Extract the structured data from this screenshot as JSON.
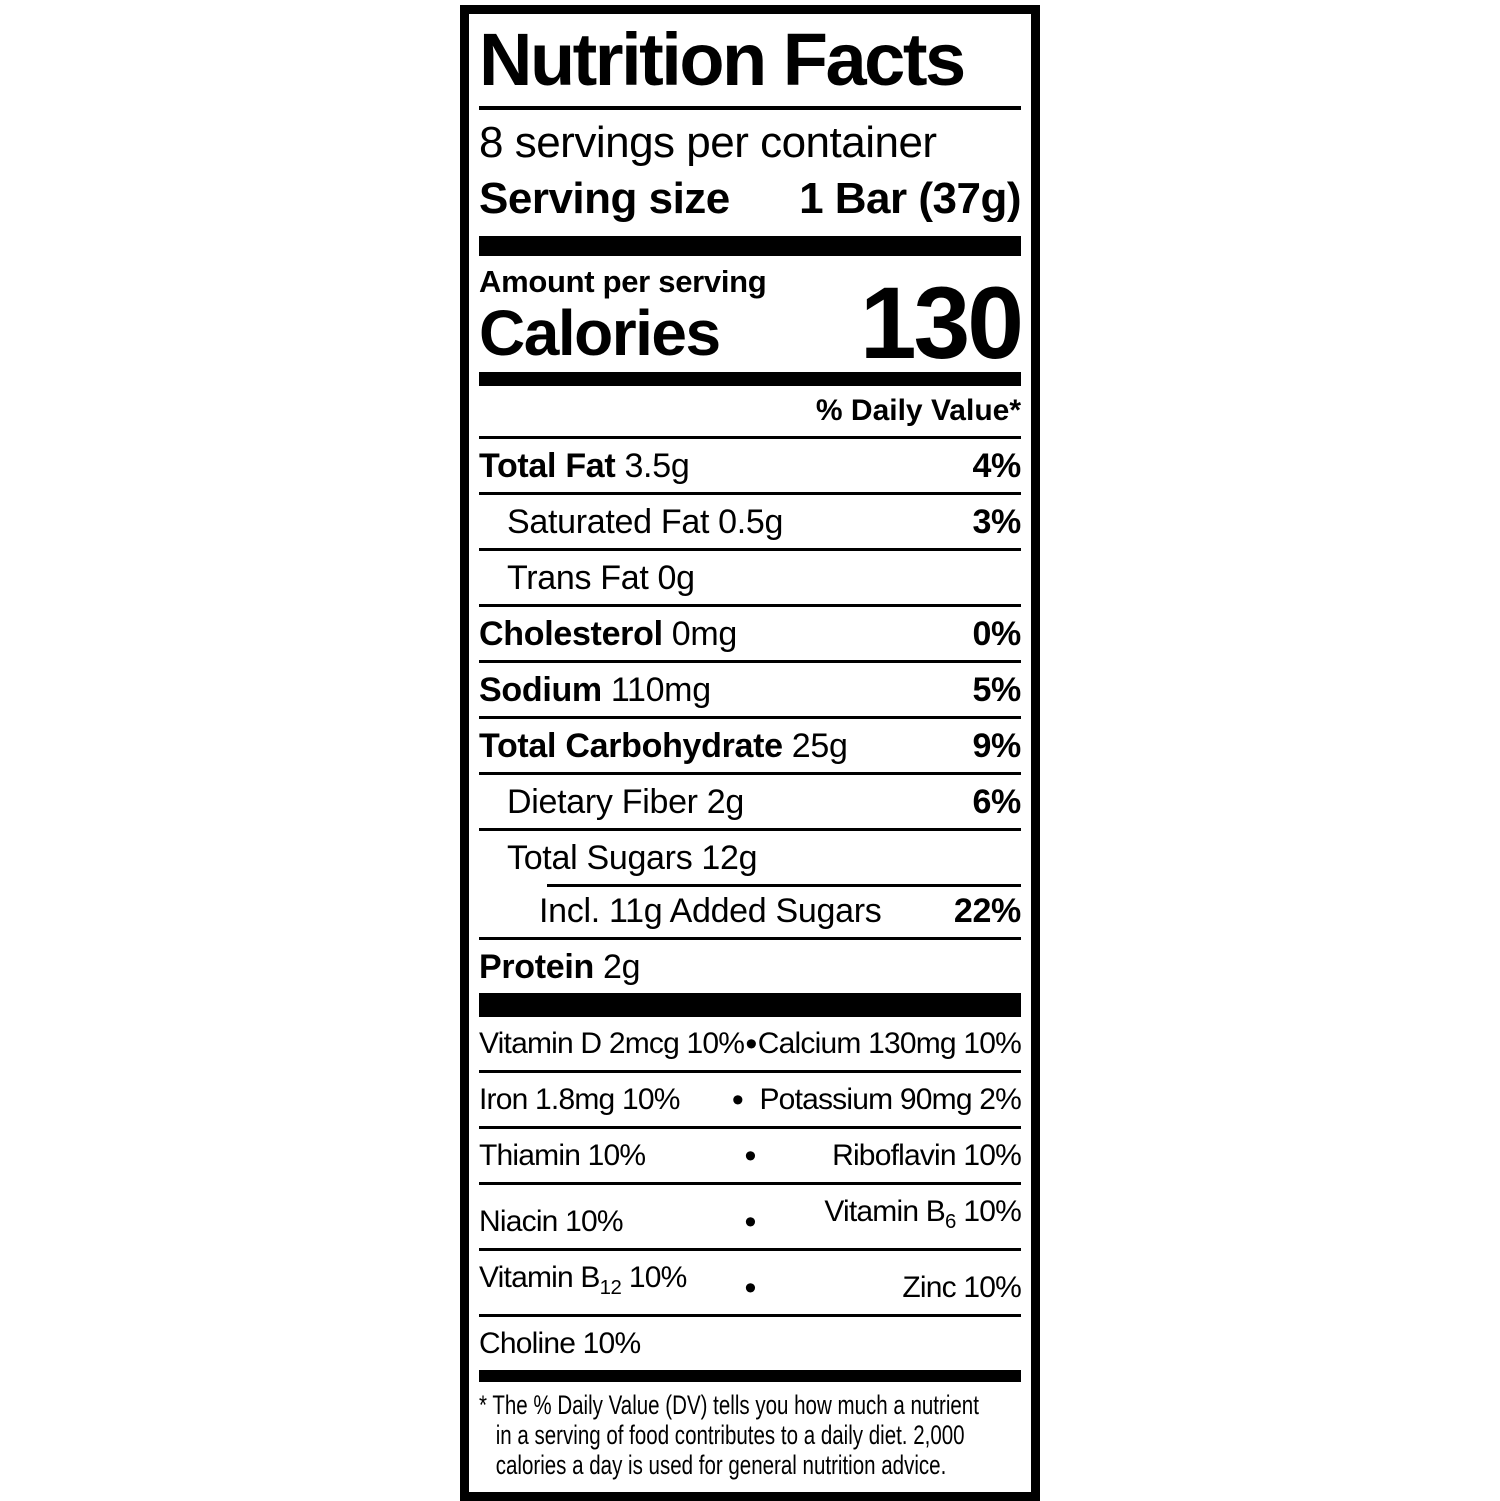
{
  "colors": {
    "ink": "#000000",
    "paper": "#ffffff"
  },
  "icons": {
    "bullet": "•"
  },
  "label": {
    "title": "Nutrition Facts",
    "servings_per_container": "8 servings per container",
    "serving_size": {
      "label": "Serving size",
      "value": "1 Bar (37g)"
    },
    "calories": {
      "context": "Amount per serving",
      "label": "Calories",
      "value": "130"
    },
    "daily_value_header": "% Daily Value*",
    "nutrients": [
      {
        "name": "Total Fat",
        "amount": "3.5g",
        "dv": "4%"
      },
      {
        "name": "Saturated Fat",
        "amount": "0.5g",
        "dv": "3%"
      },
      {
        "name": "Trans Fat",
        "amount": "0g",
        "dv": ""
      },
      {
        "name": "Cholesterol",
        "amount": "0mg",
        "dv": "0%"
      },
      {
        "name": "Sodium",
        "amount": "110mg",
        "dv": "5%"
      },
      {
        "name": "Total Carbohydrate",
        "amount": "25g",
        "dv": "9%"
      },
      {
        "name": "Dietary Fiber",
        "amount": "2g",
        "dv": "6%"
      },
      {
        "name": "Total Sugars",
        "amount": "12g",
        "dv": ""
      },
      {
        "name": "Incl. 11g Added Sugars",
        "amount": "",
        "dv": "22%"
      },
      {
        "name": "Protein",
        "amount": "2g",
        "dv": ""
      }
    ],
    "micronutrients": [
      {
        "left": "Vitamin D 2mcg 10%",
        "right": "Calcium 130mg 10%"
      },
      {
        "left": "Iron 1.8mg 10%",
        "right": "Potassium 90mg 2%"
      },
      {
        "left": "Thiamin 10%",
        "right": "Riboflavin 10%"
      },
      {
        "left": "Niacin 10%",
        "right_pre": "Vitamin B",
        "right_sub": "6",
        "right_post": " 10%"
      },
      {
        "left_pre": "Vitamin B",
        "left_sub": "12",
        "left_post": " 10%",
        "right": "Zinc 10%"
      },
      {
        "left": "Choline 10%",
        "right": ""
      }
    ],
    "footnote_lines": [
      "* The % Daily Value (DV) tells you how much a nutrient",
      "in a serving of food contributes to a daily diet. 2,000",
      "calories a day is used for general nutrition advice."
    ]
  }
}
